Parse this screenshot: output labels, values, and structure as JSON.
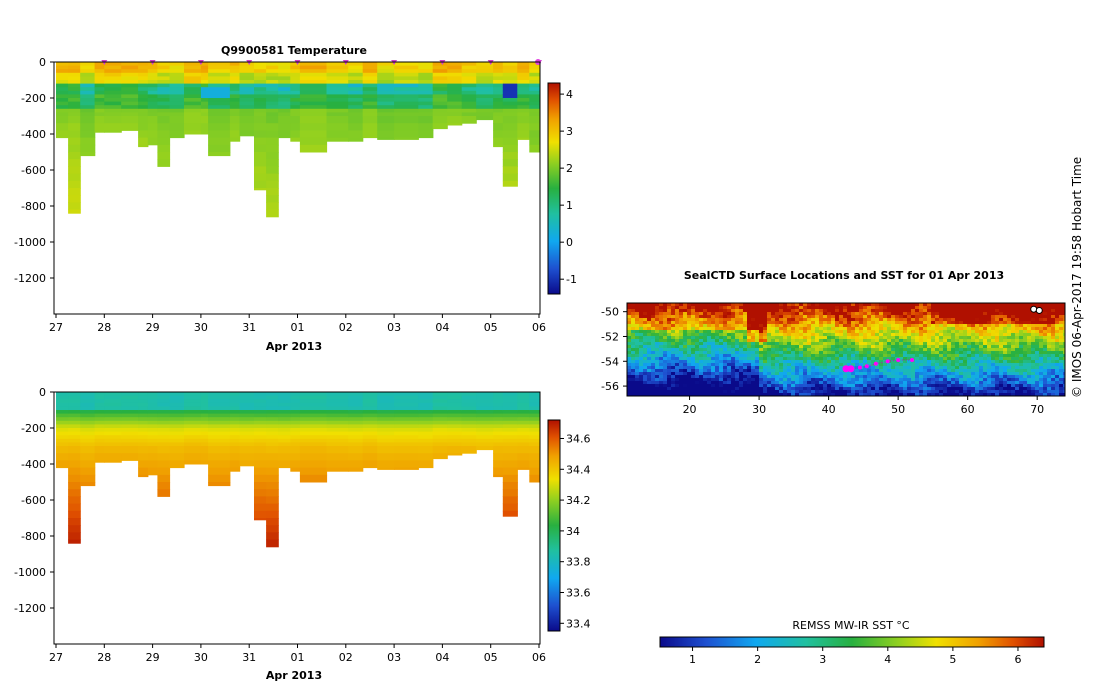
{
  "chart_data": [
    {
      "type": "heatmap",
      "title": "Q9900581  Temperature",
      "xlabel": "Apr 2013",
      "x_ticks": [
        "27",
        "28",
        "29",
        "30",
        "31",
        "01",
        "02",
        "03",
        "04",
        "05",
        "06"
      ],
      "y_ticks": [
        "0",
        "-200",
        "-400",
        "-600",
        "-800",
        "-1000",
        "-1200"
      ],
      "ylim": [
        -1400,
        0
      ],
      "colorbar": {
        "ticks": [
          "-1",
          "0",
          "1",
          "2",
          "3",
          "4"
        ],
        "range": [
          -1.4,
          4.3
        ]
      },
      "variable": "temperature",
      "profile_markers_days": [
        1,
        2,
        3,
        4,
        5,
        6,
        7,
        8,
        9,
        10
      ],
      "profiles": [
        {
          "day": 0.0,
          "w": 0.25,
          "depth": 420
        },
        {
          "day": 0.25,
          "w": 0.25,
          "depth": 840
        },
        {
          "day": 0.5,
          "w": 0.3,
          "depth": 520
        },
        {
          "day": 0.8,
          "w": 0.2,
          "depth": 390
        },
        {
          "day": 1.0,
          "w": 0.35,
          "depth": 390
        },
        {
          "day": 1.35,
          "w": 0.35,
          "depth": 380
        },
        {
          "day": 1.7,
          "w": 0.2,
          "depth": 470
        },
        {
          "day": 1.9,
          "w": 0.2,
          "depth": 460
        },
        {
          "day": 2.1,
          "w": 0.25,
          "depth": 580
        },
        {
          "day": 2.35,
          "w": 0.3,
          "depth": 420
        },
        {
          "day": 2.65,
          "w": 0.35,
          "depth": 400
        },
        {
          "day": 3.0,
          "w": 0.25,
          "depth": 400
        },
        {
          "day": 3.15,
          "w": 0.45,
          "depth": 520
        },
        {
          "day": 3.6,
          "w": 0.2,
          "depth": 440
        },
        {
          "day": 3.8,
          "w": 0.3,
          "depth": 410
        },
        {
          "day": 4.1,
          "w": 0.25,
          "depth": 710
        },
        {
          "day": 4.35,
          "w": 0.25,
          "depth": 860
        },
        {
          "day": 4.6,
          "w": 0.25,
          "depth": 420
        },
        {
          "day": 4.85,
          "w": 0.2,
          "depth": 440
        },
        {
          "day": 5.05,
          "w": 0.55,
          "depth": 500
        },
        {
          "day": 5.6,
          "w": 0.45,
          "depth": 440
        },
        {
          "day": 6.05,
          "w": 0.3,
          "depth": 440
        },
        {
          "day": 6.35,
          "w": 0.3,
          "depth": 420
        },
        {
          "day": 6.65,
          "w": 0.35,
          "depth": 430
        },
        {
          "day": 7.0,
          "w": 0.5,
          "depth": 430
        },
        {
          "day": 7.5,
          "w": 0.3,
          "depth": 420
        },
        {
          "day": 7.8,
          "w": 0.3,
          "depth": 370
        },
        {
          "day": 8.1,
          "w": 0.3,
          "depth": 350
        },
        {
          "day": 8.4,
          "w": 0.3,
          "depth": 340
        },
        {
          "day": 8.7,
          "w": 0.35,
          "depth": 320
        },
        {
          "day": 9.05,
          "w": 0.2,
          "depth": 470
        },
        {
          "day": 9.25,
          "w": 0.3,
          "depth": 690
        },
        {
          "day": 9.55,
          "w": 0.25,
          "depth": 430
        },
        {
          "day": 9.8,
          "w": 0.25,
          "depth": 500
        }
      ]
    },
    {
      "type": "heatmap",
      "title": "",
      "xlabel": "Apr 2013",
      "x_ticks": [
        "27",
        "28",
        "29",
        "30",
        "31",
        "01",
        "02",
        "03",
        "04",
        "05",
        "06"
      ],
      "y_ticks": [
        "0",
        "-200",
        "-400",
        "-600",
        "-800",
        "-1000",
        "-1200"
      ],
      "ylim": [
        -1400,
        0
      ],
      "colorbar": {
        "ticks": [
          "34.6",
          "34.4",
          "34.2",
          "34",
          "33.8",
          "33.6",
          "33.4"
        ],
        "range": [
          33.35,
          34.72
        ]
      },
      "variable": "salinity"
    },
    {
      "type": "heatmap",
      "title": "SealCTD Surface Locations and SST for 01 Apr 2013",
      "x_ticks": [
        "20",
        "30",
        "40",
        "50",
        "60",
        "70"
      ],
      "y_ticks": [
        "-50",
        "-52",
        "-54",
        "-56"
      ],
      "xlim": [
        11,
        74
      ],
      "ylim": [
        -56.8,
        -49.3
      ],
      "colorbar_label": "REMSS MW-IR SST °C",
      "colorbar_ticks": [
        "1",
        "2",
        "3",
        "4",
        "5",
        "6"
      ],
      "track": [
        [
          42.5,
          -54.6
        ],
        [
          43.2,
          -54.6
        ],
        [
          44.5,
          -54.5
        ],
        [
          45.5,
          -54.4
        ],
        [
          46.8,
          -54.2
        ],
        [
          48.5,
          -54.0
        ],
        [
          50.0,
          -53.9
        ],
        [
          52.0,
          -53.9
        ]
      ]
    }
  ],
  "credit": "© IMOS 06-Apr-2017 19:58 Hobart Time"
}
